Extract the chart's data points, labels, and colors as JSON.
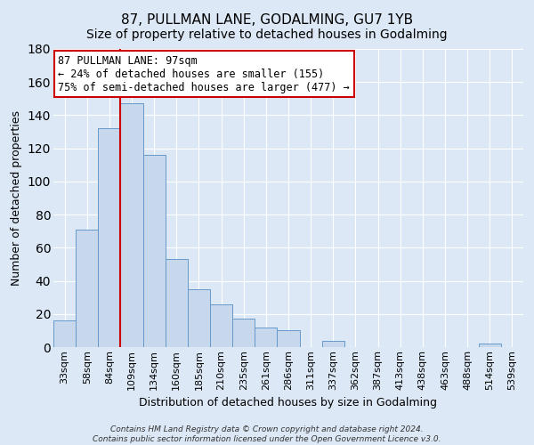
{
  "title": "87, PULLMAN LANE, GODALMING, GU7 1YB",
  "subtitle": "Size of property relative to detached houses in Godalming",
  "xlabel": "Distribution of detached houses by size in Godalming",
  "ylabel": "Number of detached properties",
  "categories": [
    "33sqm",
    "58sqm",
    "84sqm",
    "109sqm",
    "134sqm",
    "160sqm",
    "185sqm",
    "210sqm",
    "235sqm",
    "261sqm",
    "286sqm",
    "311sqm",
    "337sqm",
    "362sqm",
    "387sqm",
    "413sqm",
    "438sqm",
    "463sqm",
    "488sqm",
    "514sqm",
    "539sqm"
  ],
  "values": [
    16,
    71,
    132,
    147,
    116,
    53,
    35,
    26,
    17,
    12,
    10,
    0,
    4,
    0,
    0,
    0,
    0,
    0,
    0,
    2,
    0
  ],
  "bar_color": "#c8d8ec",
  "bar_edge_color": "#6699cc",
  "vline_x_index": 3,
  "vline_color": "#cc0000",
  "annotation_title": "87 PULLMAN LANE: 97sqm",
  "annotation_line1": "← 24% of detached houses are smaller (155)",
  "annotation_line2": "75% of semi-detached houses are larger (477) →",
  "annotation_box_color": "#ffffff",
  "annotation_box_edge": "#cc0000",
  "ylim": [
    0,
    180
  ],
  "yticks": [
    0,
    20,
    40,
    60,
    80,
    100,
    120,
    140,
    160,
    180
  ],
  "footer1": "Contains HM Land Registry data © Crown copyright and database right 2024.",
  "footer2": "Contains public sector information licensed under the Open Government Licence v3.0.",
  "bg_color": "#dce8f5",
  "plot_bg_color": "#dce8f5",
  "grid_color": "#ffffff",
  "title_fontsize": 11,
  "subtitle_fontsize": 10,
  "ylabel_fontsize": 9,
  "xlabel_fontsize": 9,
  "tick_fontsize": 8
}
